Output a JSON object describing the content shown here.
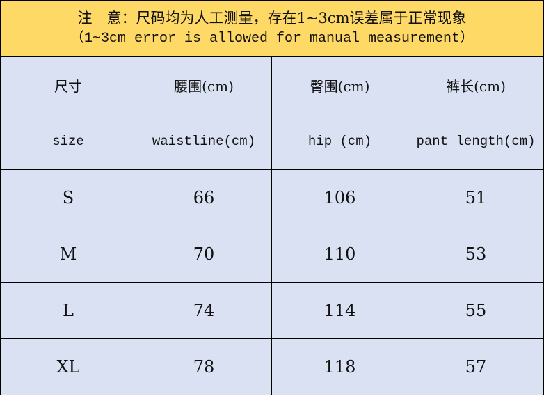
{
  "note": {
    "chinese": "注　意：尺码均为人工测量，存在1~3cm误差属于正常现象",
    "english": "（1~3cm error is allowed for manual measurement）"
  },
  "colors": {
    "note_bg": "#FFD966",
    "table_bg": "#D9E1F2"
  },
  "headers_cn": [
    "尺寸",
    "腰围(cm)",
    "臀围(cm)",
    "裤长(cm)"
  ],
  "headers_en": [
    "size",
    "waistline(cm)",
    "hip (cm)",
    "pant length(cm)"
  ],
  "rows": [
    [
      "S",
      "66",
      "106",
      "51"
    ],
    [
      "M",
      "70",
      "110",
      "53"
    ],
    [
      "L",
      "74",
      "114",
      "55"
    ],
    [
      "XL",
      "78",
      "118",
      "57"
    ]
  ]
}
